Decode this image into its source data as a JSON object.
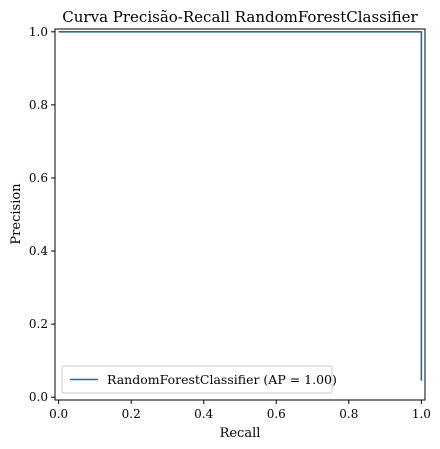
{
  "chart_data": {
    "type": "line",
    "title": "Curva Precisão-Recall RandomForestClassifier",
    "xlabel": "Recall",
    "ylabel": "Precision",
    "xlim": [
      -0.01,
      1.01
    ],
    "ylim": [
      -0.0077,
      1.0077
    ],
    "x_ticks": [
      0.0,
      0.2,
      0.4,
      0.6,
      0.8,
      1.0
    ],
    "y_ticks": [
      0.0,
      0.2,
      0.4,
      0.6,
      0.8,
      1.0
    ],
    "x_tick_labels": [
      "0.0",
      "0.2",
      "0.4",
      "0.6",
      "0.8",
      "1.0"
    ],
    "y_tick_labels": [
      "0.0",
      "0.2",
      "0.4",
      "0.6",
      "0.8",
      "1.0"
    ],
    "grid": false,
    "legend_position": "lower-left",
    "series": [
      {
        "name": "RandomForestClassifier (AP = 1.00)",
        "color": "#1f6f93",
        "step": true,
        "x": [
          0.0,
          1.0,
          1.0
        ],
        "y": [
          1.0,
          1.0,
          0.045
        ]
      }
    ]
  }
}
